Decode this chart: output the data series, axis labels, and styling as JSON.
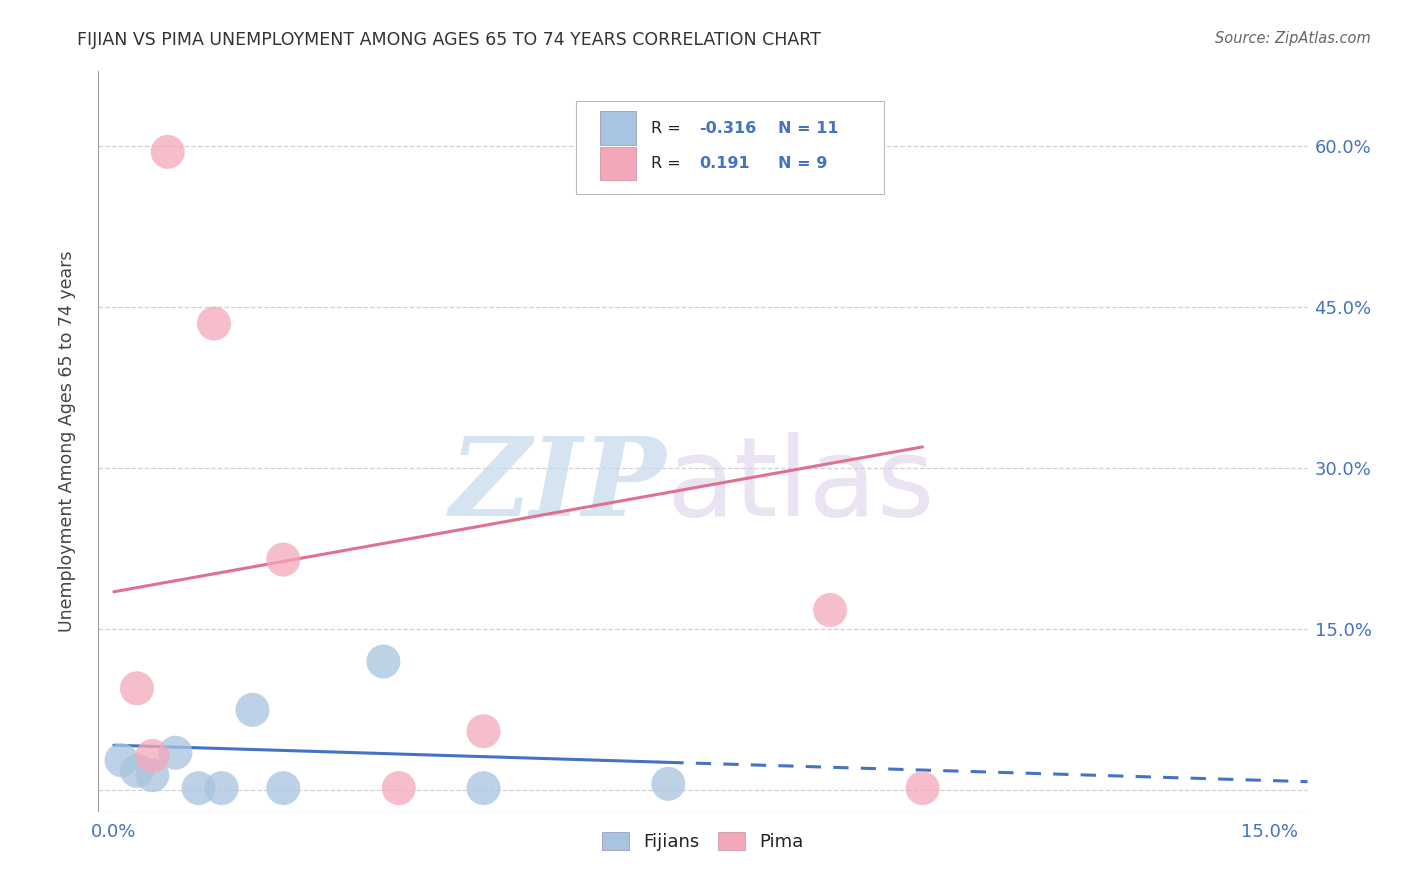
{
  "title": "FIJIAN VS PIMA UNEMPLOYMENT AMONG AGES 65 TO 74 YEARS CORRELATION CHART",
  "source": "Source: ZipAtlas.com",
  "ylabel": "Unemployment Among Ages 65 to 74 years",
  "xlim": [
    -0.002,
    0.155
  ],
  "ylim": [
    -0.02,
    0.67
  ],
  "xticks": [
    0.0,
    0.03,
    0.06,
    0.09,
    0.12,
    0.15
  ],
  "yticks": [
    0.0,
    0.15,
    0.3,
    0.45,
    0.6
  ],
  "fijians_x": [
    0.001,
    0.003,
    0.005,
    0.008,
    0.011,
    0.014,
    0.018,
    0.022,
    0.035,
    0.048,
    0.072
  ],
  "fijians_y": [
    0.028,
    0.018,
    0.014,
    0.035,
    0.002,
    0.002,
    0.075,
    0.002,
    0.12,
    0.002,
    0.006
  ],
  "pima_x": [
    0.003,
    0.005,
    0.007,
    0.013,
    0.022,
    0.037,
    0.048,
    0.093,
    0.105
  ],
  "pima_y": [
    0.095,
    0.032,
    0.595,
    0.435,
    0.215,
    0.002,
    0.055,
    0.168,
    0.002
  ],
  "fijians_color": "#a8c4e0",
  "pima_color": "#f4a7b9",
  "fijians_r": -0.316,
  "fijians_n": 11,
  "pima_r": 0.191,
  "pima_n": 9,
  "fijians_line_x": [
    0.0,
    0.072,
    0.155
  ],
  "fijians_line_y": [
    0.042,
    0.026,
    0.008
  ],
  "pima_line_x": [
    0.0,
    0.105
  ],
  "pima_line_y": [
    0.185,
    0.32
  ],
  "fijians_line_color": "#4472c4",
  "pima_line_color": "#e07090",
  "watermark_zip_color": "#c5d8ec",
  "watermark_atlas_color": "#d8cce8",
  "background_color": "#ffffff",
  "grid_color": "#cccccc",
  "title_color": "#333333",
  "axis_label_color": "#444444",
  "tick_label_color": "#4472c4",
  "source_color": "#666666"
}
